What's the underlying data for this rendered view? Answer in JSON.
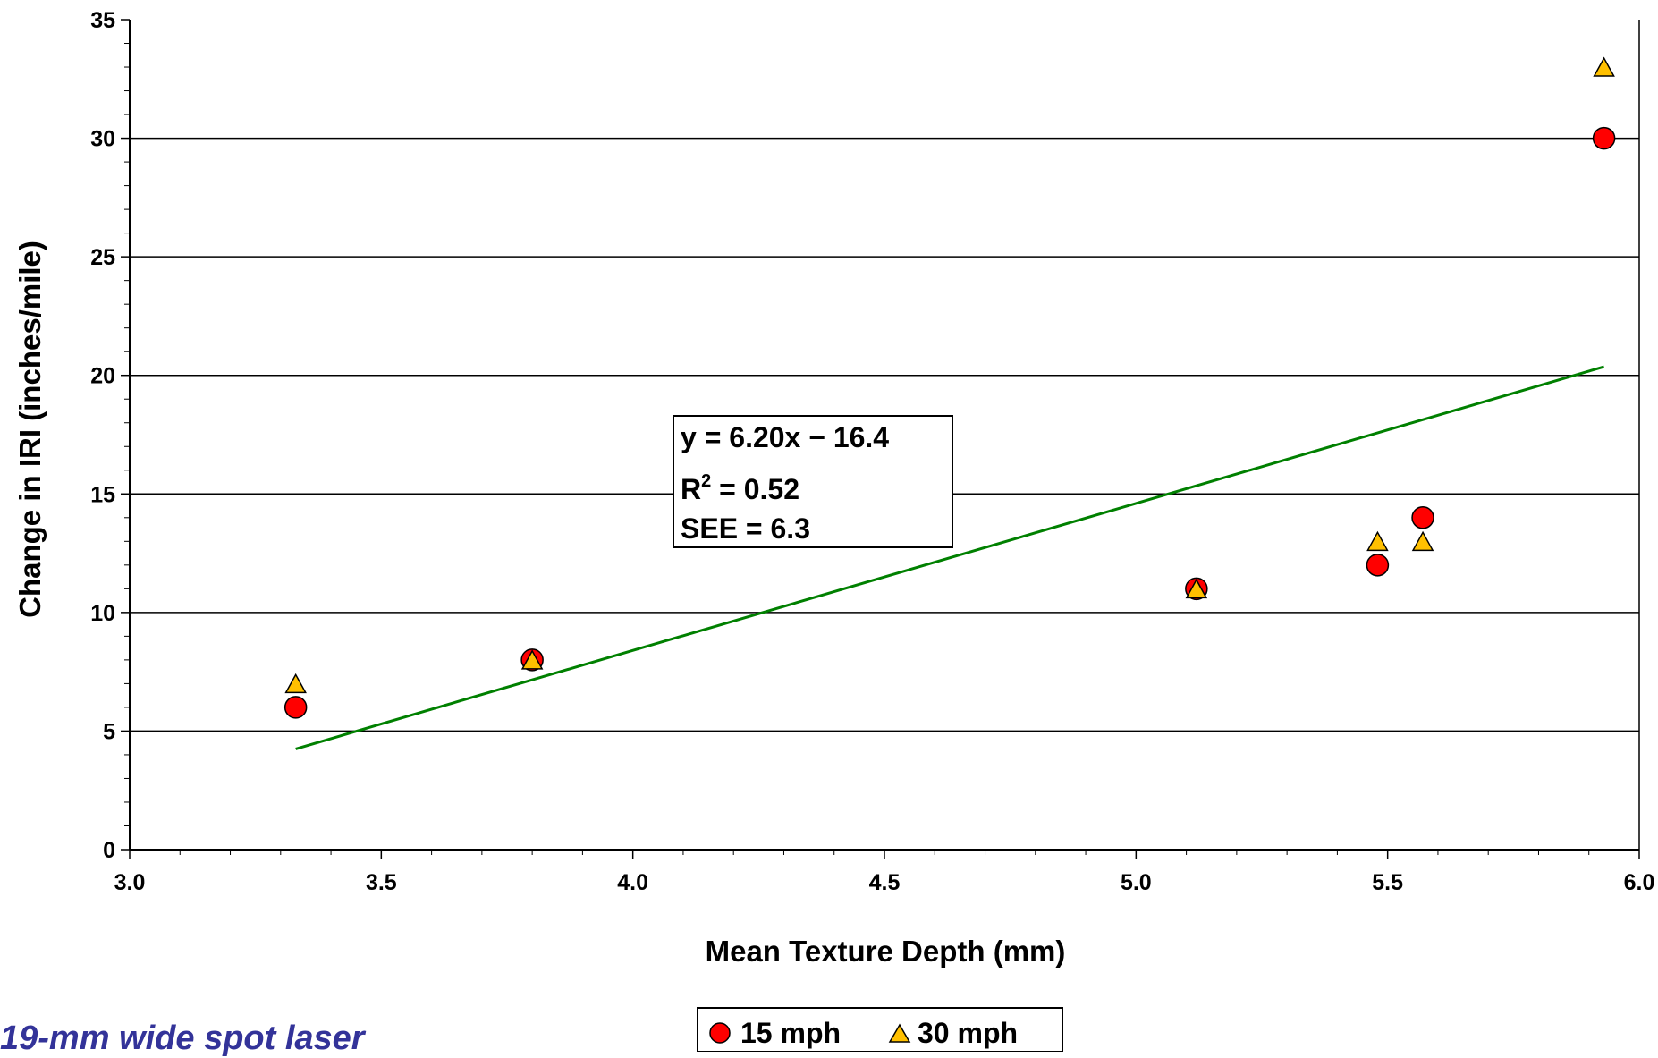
{
  "chart_data": {
    "type": "scatter",
    "xlabel": "Mean Texture Depth (mm)",
    "ylabel": "Change in IRI (inches/mile)",
    "xlim": [
      3.0,
      6.0
    ],
    "ylim": [
      0,
      35
    ],
    "x_ticks": [
      "3.0",
      "3.5",
      "4.0",
      "4.5",
      "5.0",
      "5.5",
      "6.0"
    ],
    "y_ticks": [
      "0",
      "5",
      "10",
      "15",
      "20",
      "25",
      "30",
      "35"
    ],
    "grid": "horizontal",
    "series": [
      {
        "name": "15 mph",
        "marker": "circle",
        "color": "#ff0000",
        "points": [
          [
            3.33,
            6.0
          ],
          [
            3.8,
            8.0
          ],
          [
            5.12,
            11.0
          ],
          [
            5.48,
            12.0
          ],
          [
            5.57,
            14.0
          ],
          [
            5.93,
            30.0
          ]
        ]
      },
      {
        "name": "30 mph",
        "marker": "triangle",
        "color": "#ffc000",
        "points": [
          [
            3.33,
            7.0
          ],
          [
            3.8,
            8.0
          ],
          [
            5.12,
            11.0
          ],
          [
            5.48,
            13.0
          ],
          [
            5.57,
            13.0
          ],
          [
            5.93,
            33.0
          ]
        ]
      }
    ],
    "trendline": {
      "color": "#008000",
      "slope": 6.2,
      "intercept": -16.4,
      "x_range": [
        3.33,
        5.93
      ]
    },
    "annotation": {
      "line1": "y = 6.20x − 16.4",
      "line2_base": "R",
      "line2_sup": "2",
      "line2_rest": " = 0.52",
      "line3": "SEE = 6.3"
    },
    "legend": {
      "position": "bottom-center",
      "entries": [
        "15 mph",
        "30 mph"
      ]
    }
  },
  "caption": "19-mm wide spot laser"
}
